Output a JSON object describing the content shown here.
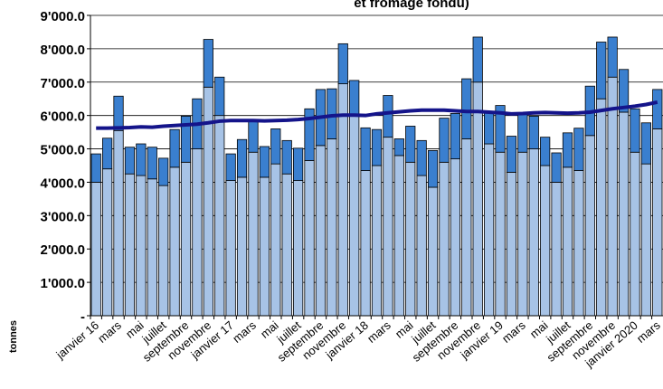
{
  "chart_data": {
    "type": "bar",
    "stacked": true,
    "title": "et fromage fondu)",
    "y_label": "tonnes",
    "categories": [
      "janvier 16",
      null,
      "mars",
      null,
      "mai",
      null,
      "juillet",
      null,
      "septembre",
      null,
      "novembre",
      null,
      "janvier 17",
      null,
      "mars",
      null,
      "mai",
      null,
      "juillet",
      null,
      "septembre",
      null,
      "novembre",
      null,
      "janvier 18",
      null,
      "mars",
      null,
      "mai",
      null,
      "juillet",
      null,
      "septembre",
      null,
      "novembre",
      null,
      "janvier 19",
      null,
      "mars",
      null,
      "mai",
      null,
      "juillet",
      null,
      "septembre",
      null,
      "novembre",
      null,
      "janvier 2020",
      null,
      "mars"
    ],
    "series": [
      {
        "color": "#a7c3e6",
        "values": [
          4000,
          4400,
          5550,
          4250,
          4200,
          4100,
          3900,
          4450,
          4600,
          5000,
          6850,
          6000,
          4050,
          4150,
          4900,
          4150,
          4550,
          4250,
          4050,
          4650,
          5100,
          5300,
          6950,
          6000,
          4350,
          4500,
          5350,
          4800,
          4600,
          4200,
          3850,
          4600,
          4700,
          5300,
          7000,
          5150,
          4900,
          4300,
          4900,
          5000,
          4500,
          4000,
          4450,
          4350,
          5400,
          6500,
          7150,
          6100,
          4900,
          4550,
          5600
        ]
      },
      {
        "color": "#3a7fcf",
        "values": [
          850,
          920,
          1030,
          800,
          950,
          950,
          820,
          1130,
          1380,
          1500,
          1430,
          1150,
          800,
          1130,
          980,
          920,
          1050,
          1000,
          970,
          1550,
          1680,
          1500,
          1200,
          1050,
          1280,
          1080,
          1250,
          500,
          1080,
          1050,
          1100,
          1320,
          1360,
          1800,
          1350,
          930,
          1400,
          1080,
          1140,
          980,
          850,
          880,
          1030,
          1270,
          1480,
          1700,
          1200,
          1280,
          1300,
          1230,
          1180
        ]
      },
      {
        "type": "line",
        "color": "#14148a",
        "values": [
          5620,
          5620,
          5630,
          5640,
          5660,
          5650,
          5680,
          5700,
          5720,
          5740,
          5780,
          5830,
          5850,
          5850,
          5850,
          5840,
          5850,
          5860,
          5880,
          5910,
          5950,
          5990,
          6010,
          6010,
          6000,
          6050,
          6080,
          6110,
          6140,
          6160,
          6160,
          6160,
          6140,
          6120,
          6120,
          6100,
          6080,
          6050,
          6060,
          6080,
          6090,
          6080,
          6070,
          6080,
          6100,
          6150,
          6200,
          6240,
          6280,
          6330,
          6400
        ]
      }
    ],
    "ylim": [
      0,
      9000
    ],
    "yticks": [
      {
        "value": 0,
        "label": "-"
      },
      {
        "value": 1000,
        "label": "1'000.0"
      },
      {
        "value": 2000,
        "label": "2'000.0"
      },
      {
        "value": 3000,
        "label": "3'000.0"
      },
      {
        "value": 4000,
        "label": "4'000.0"
      },
      {
        "value": 5000,
        "label": "5'000.0"
      },
      {
        "value": 6000,
        "label": "6'000.0"
      },
      {
        "value": 7000,
        "label": "7'000.0"
      },
      {
        "value": 8000,
        "label": "8'000.0"
      },
      {
        "value": 9000,
        "label": "9'000.0"
      }
    ],
    "grid": true
  }
}
